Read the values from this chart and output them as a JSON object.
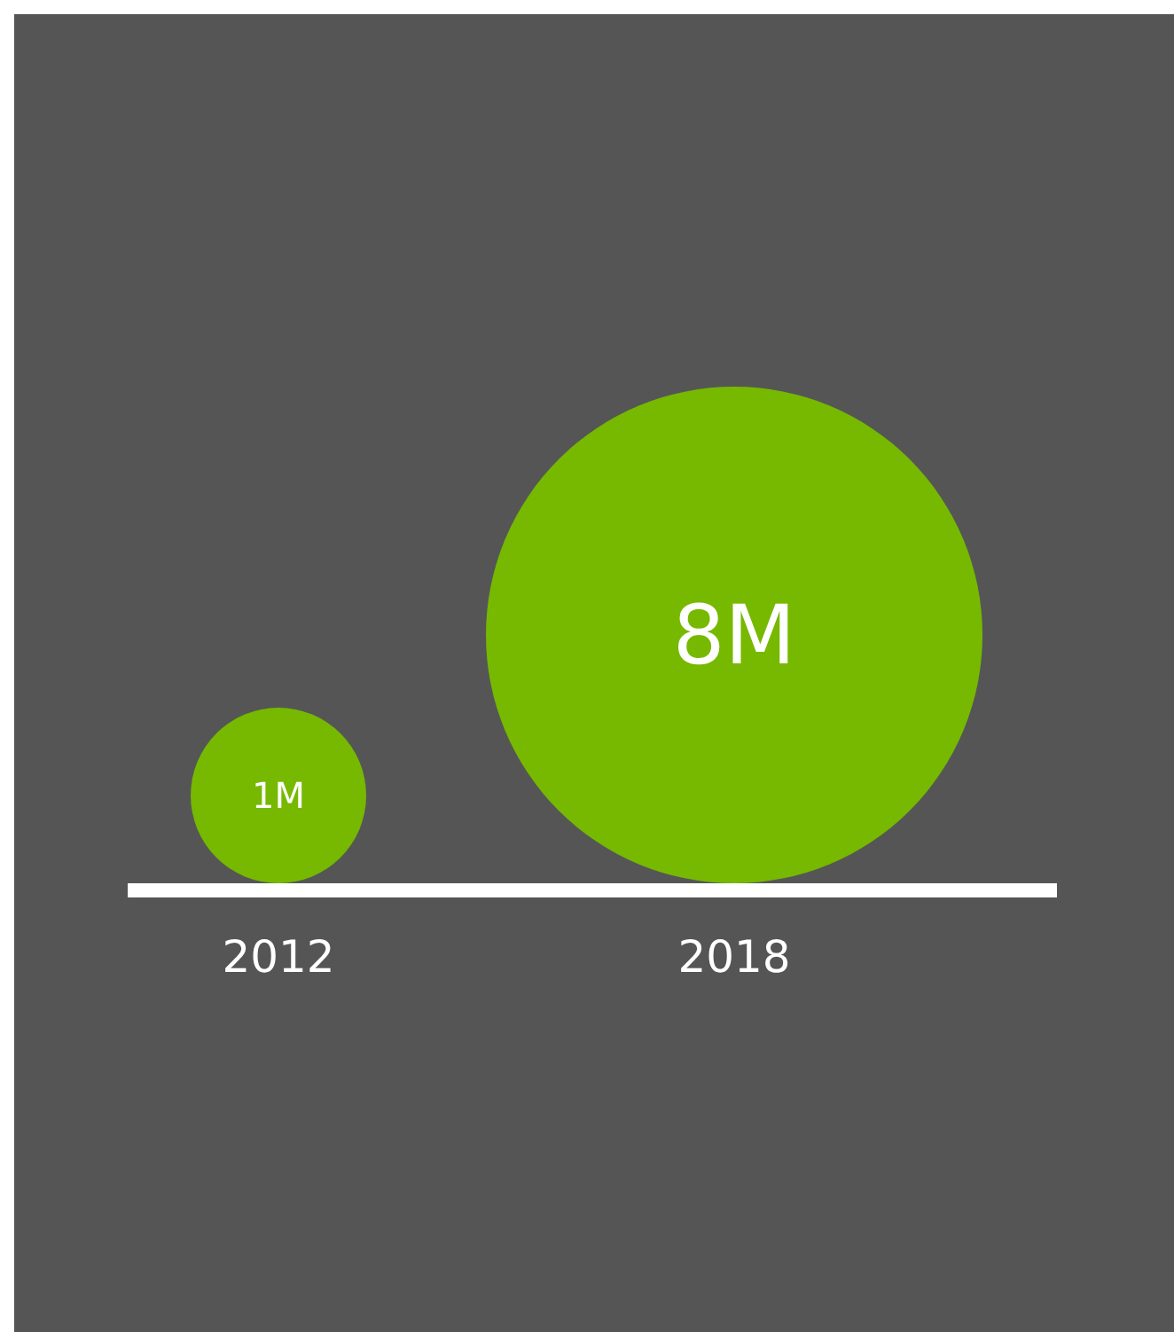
{
  "chart_data": {
    "type": "bubble",
    "categories": [
      "2012",
      "2018"
    ],
    "values": [
      1,
      8
    ],
    "value_labels": [
      "1M",
      "8M"
    ],
    "color": "#76b900"
  }
}
